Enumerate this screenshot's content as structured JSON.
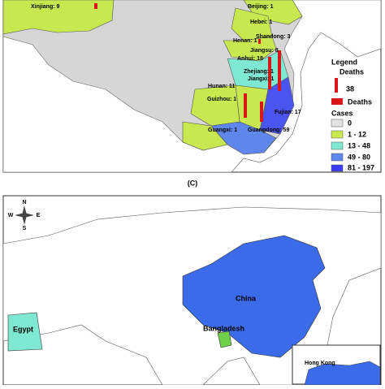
{
  "top_map": {
    "provinces": [
      {
        "label": "Xinjiang: 9"
      },
      {
        "label": "Beijing: 1"
      },
      {
        "label": "Hebei: 1"
      },
      {
        "label": "Henan: 1"
      },
      {
        "label": "Shandong: 3"
      },
      {
        "label": "Jiangsu: 8"
      },
      {
        "label": "Anhui: 18"
      },
      {
        "label": "Zhejiang: 1"
      },
      {
        "label": "Jiangxi: 1"
      },
      {
        "label": "Hunan: 11"
      },
      {
        "label": "Guizhou: 1"
      },
      {
        "label": "Fujian: 17"
      },
      {
        "label": "Guangxi: 1"
      },
      {
        "label": "Guangdong: 59"
      }
    ],
    "legend": {
      "title": "Legend",
      "deaths_heading": "Deaths",
      "deaths_scale": "38",
      "deaths_label": "Deaths",
      "cases_heading": "Cases",
      "classes": [
        "0",
        "1 - 12",
        "13 - 48",
        "49 - 80",
        "81 - 197"
      ]
    },
    "caption": "(C)"
  },
  "bottom_map": {
    "compass": [
      "N",
      "W",
      "E",
      "S"
    ],
    "countries": [
      "China",
      "Egypt",
      "Bangladesh"
    ],
    "inset": "Hong Kong"
  }
}
